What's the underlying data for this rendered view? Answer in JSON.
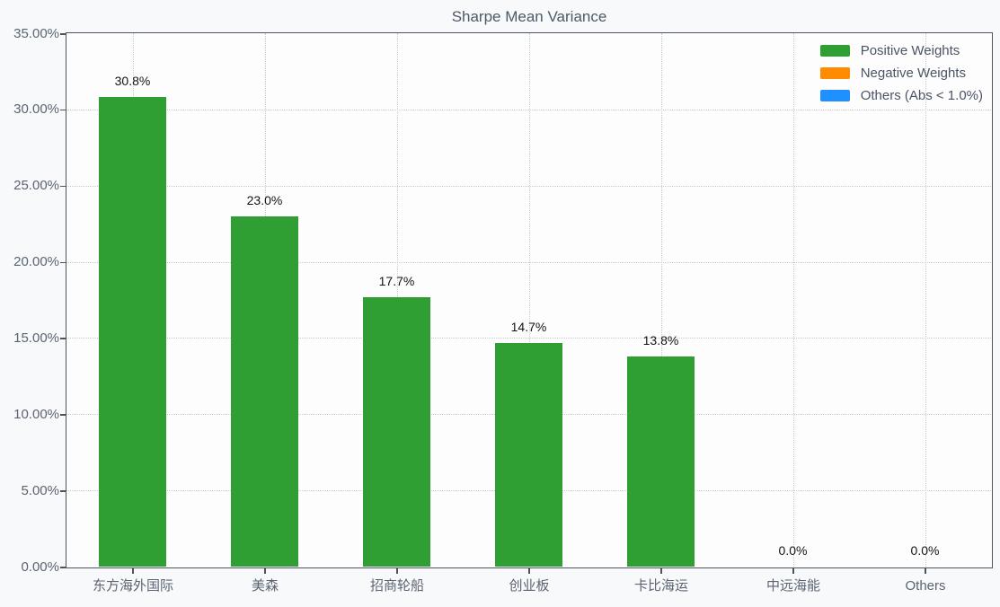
{
  "colors": {
    "positive_green": "#2f9e33",
    "negative_orange": "#ff8c00",
    "others_blue": "#1e90ff",
    "grid": "#c8cbd0",
    "spine": "#4e545e",
    "title_text": "#4d5a68",
    "tick_text": "#5b6472",
    "value_text": "#141414",
    "page_bg": "#f8f9fa",
    "plot_bg": "#fdfdfe"
  },
  "legend": {
    "items": [
      {
        "label": "Positive Weights",
        "color_key": "positive_green"
      },
      {
        "label": "Negative Weights",
        "color_key": "negative_orange"
      },
      {
        "label": "Others (Abs < 1.0%)",
        "color_key": "others_blue"
      }
    ]
  },
  "chart_data": {
    "type": "bar",
    "title": "Sharpe Mean Variance",
    "categories": [
      "东方海外国际",
      "美森",
      "招商轮船",
      "创业板",
      "卡比海运",
      "中远海能",
      "Others"
    ],
    "values": [
      30.8,
      23.0,
      17.7,
      14.7,
      13.8,
      0.0,
      0.0
    ],
    "bar_labels": [
      "30.8%",
      "23.0%",
      "17.7%",
      "14.7%",
      "13.8%",
      "0.0%",
      "0.0%"
    ],
    "series_color_key": "positive_green",
    "xlabel": "",
    "ylabel": "",
    "ylim": [
      0,
      35
    ],
    "y_tick_step": 5,
    "y_tick_labels": [
      "0.00%",
      "5.00%",
      "10.00%",
      "15.00%",
      "20.00%",
      "25.00%",
      "30.00%",
      "35.00%"
    ],
    "grid": true,
    "grid_style": "dotted",
    "legend_position": "top-right"
  }
}
